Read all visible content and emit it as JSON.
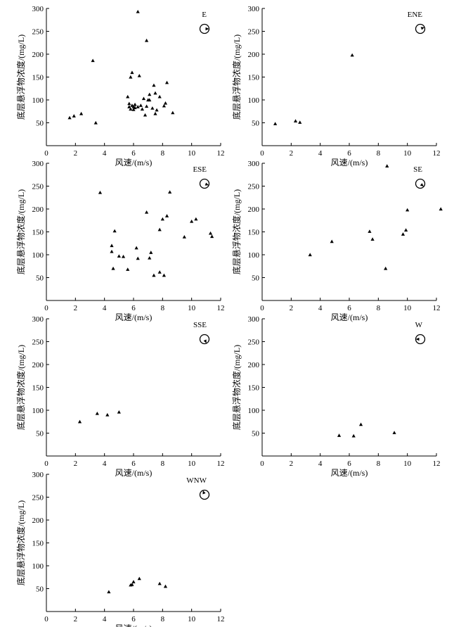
{
  "chart_data": [
    {
      "type": "scatter",
      "direction_label": "E",
      "xlabel": "风速/(m/s)",
      "ylabel": "底层悬浮物浓度/(mg/L)",
      "xlim": [
        0,
        12
      ],
      "ylim": [
        0,
        300
      ],
      "xticks": [
        0,
        2,
        4,
        6,
        8,
        10,
        12
      ],
      "yticks": [
        50,
        100,
        150,
        200,
        250,
        300
      ],
      "direction_symbol": "wind-direction-circle-east",
      "points": [
        [
          1.6,
          61
        ],
        [
          1.9,
          65
        ],
        [
          2.4,
          70
        ],
        [
          3.2,
          186
        ],
        [
          3.4,
          50
        ],
        [
          5.6,
          107
        ],
        [
          5.7,
          92
        ],
        [
          5.7,
          85
        ],
        [
          5.8,
          80
        ],
        [
          5.8,
          150
        ],
        [
          5.9,
          160
        ],
        [
          5.9,
          88
        ],
        [
          6.0,
          85
        ],
        [
          6.0,
          79
        ],
        [
          6.1,
          83
        ],
        [
          6.1,
          90
        ],
        [
          6.3,
          293
        ],
        [
          6.3,
          85
        ],
        [
          6.4,
          153
        ],
        [
          6.5,
          88
        ],
        [
          6.6,
          80
        ],
        [
          6.7,
          103
        ],
        [
          6.8,
          67
        ],
        [
          6.9,
          230
        ],
        [
          6.9,
          86
        ],
        [
          7.0,
          100
        ],
        [
          7.1,
          112
        ],
        [
          7.1,
          100
        ],
        [
          7.3,
          82
        ],
        [
          7.4,
          132
        ],
        [
          7.5,
          70
        ],
        [
          7.5,
          115
        ],
        [
          7.6,
          78
        ],
        [
          7.8,
          107
        ],
        [
          8.1,
          87
        ],
        [
          8.2,
          93
        ],
        [
          8.3,
          138
        ],
        [
          8.7,
          72
        ]
      ]
    },
    {
      "type": "scatter",
      "direction_label": "ENE",
      "xlabel": "风速/(m/s)",
      "ylabel": "底层悬浮物浓度/(mg/L)",
      "xlim": [
        0,
        12
      ],
      "ylim": [
        0,
        300
      ],
      "xticks": [
        0,
        2,
        4,
        6,
        8,
        10,
        12
      ],
      "yticks": [
        50,
        100,
        150,
        200,
        250,
        300
      ],
      "direction_symbol": "wind-direction-circle-east-northeast",
      "points": [
        [
          0.9,
          48
        ],
        [
          2.3,
          54
        ],
        [
          2.6,
          51
        ],
        [
          6.2,
          198
        ]
      ]
    },
    {
      "type": "scatter",
      "direction_label": "ESE",
      "xlabel": "风速/(m/s)",
      "ylabel": "底层悬浮物浓度/(mg/L)",
      "xlim": [
        0,
        12
      ],
      "ylim": [
        0,
        300
      ],
      "xticks": [
        0,
        2,
        4,
        6,
        8,
        10,
        12
      ],
      "yticks": [
        50,
        100,
        150,
        200,
        250,
        300
      ],
      "direction_symbol": "wind-direction-circle-east-southeast",
      "points": [
        [
          3.7,
          236
        ],
        [
          4.5,
          120
        ],
        [
          4.5,
          107
        ],
        [
          4.6,
          70
        ],
        [
          4.7,
          152
        ],
        [
          5.0,
          97
        ],
        [
          5.3,
          96
        ],
        [
          5.6,
          68
        ],
        [
          6.2,
          115
        ],
        [
          6.3,
          92
        ],
        [
          6.9,
          193
        ],
        [
          7.1,
          93
        ],
        [
          7.2,
          105
        ],
        [
          7.4,
          55
        ],
        [
          7.8,
          155
        ],
        [
          7.8,
          62
        ],
        [
          8.0,
          178
        ],
        [
          8.1,
          55
        ],
        [
          8.3,
          185
        ],
        [
          8.5,
          237
        ],
        [
          9.5,
          139
        ],
        [
          10.0,
          173
        ],
        [
          10.3,
          178
        ],
        [
          11.3,
          147
        ],
        [
          11.4,
          140
        ]
      ]
    },
    {
      "type": "scatter",
      "direction_label": "SE",
      "xlabel": "风速/(m/s)",
      "ylabel": "底层悬浮物浓度/(mg/L)",
      "xlim": [
        0,
        12
      ],
      "ylim": [
        0,
        300
      ],
      "xticks": [
        0,
        2,
        4,
        6,
        8,
        10,
        12
      ],
      "yticks": [
        50,
        100,
        150,
        200,
        250,
        300
      ],
      "direction_symbol": "wind-direction-circle-southeast",
      "points": [
        [
          3.3,
          100
        ],
        [
          4.8,
          129
        ],
        [
          7.4,
          151
        ],
        [
          7.6,
          134
        ],
        [
          8.5,
          70
        ],
        [
          8.6,
          294
        ],
        [
          9.7,
          145
        ],
        [
          9.9,
          154
        ],
        [
          10.0,
          198
        ],
        [
          12.3,
          200
        ]
      ]
    },
    {
      "type": "scatter",
      "direction_label": "SSE",
      "xlabel": "风速/(m/s)",
      "ylabel": "底层悬浮物浓度/(mg/L)",
      "xlim": [
        0,
        12
      ],
      "ylim": [
        0,
        300
      ],
      "xticks": [
        0,
        2,
        4,
        6,
        8,
        10,
        12
      ],
      "yticks": [
        50,
        100,
        150,
        200,
        250,
        300
      ],
      "direction_symbol": "wind-direction-circle-south-southeast",
      "points": [
        [
          2.3,
          75
        ],
        [
          3.5,
          93
        ],
        [
          4.2,
          90
        ],
        [
          5.0,
          96
        ]
      ]
    },
    {
      "type": "scatter",
      "direction_label": "W",
      "xlabel": "风速/(m/s)",
      "ylabel": "底层悬浮物浓度/(mg/L)",
      "xlim": [
        0,
        12
      ],
      "ylim": [
        0,
        300
      ],
      "xticks": [
        0,
        2,
        4,
        6,
        8,
        10,
        12
      ],
      "yticks": [
        50,
        100,
        150,
        200,
        250,
        300
      ],
      "direction_symbol": "wind-direction-circle-west",
      "points": [
        [
          5.3,
          45
        ],
        [
          6.3,
          44
        ],
        [
          6.8,
          69
        ],
        [
          9.1,
          51
        ]
      ]
    },
    {
      "type": "scatter",
      "direction_label": "WNW",
      "xlabel": "风速/(m/s)",
      "ylabel": "底层悬浮物浓度/(mg/L)",
      "xlim": [
        0,
        12
      ],
      "ylim": [
        0,
        300
      ],
      "xticks": [
        0,
        2,
        4,
        6,
        8,
        10,
        12
      ],
      "yticks": [
        50,
        100,
        150,
        200,
        250,
        300
      ],
      "direction_symbol": "wind-direction-circle-west-northwest",
      "points": [
        [
          4.3,
          43
        ],
        [
          5.8,
          58
        ],
        [
          5.9,
          59
        ],
        [
          6.0,
          65
        ],
        [
          6.4,
          72
        ],
        [
          7.8,
          61
        ],
        [
          8.2,
          55
        ]
      ]
    }
  ]
}
